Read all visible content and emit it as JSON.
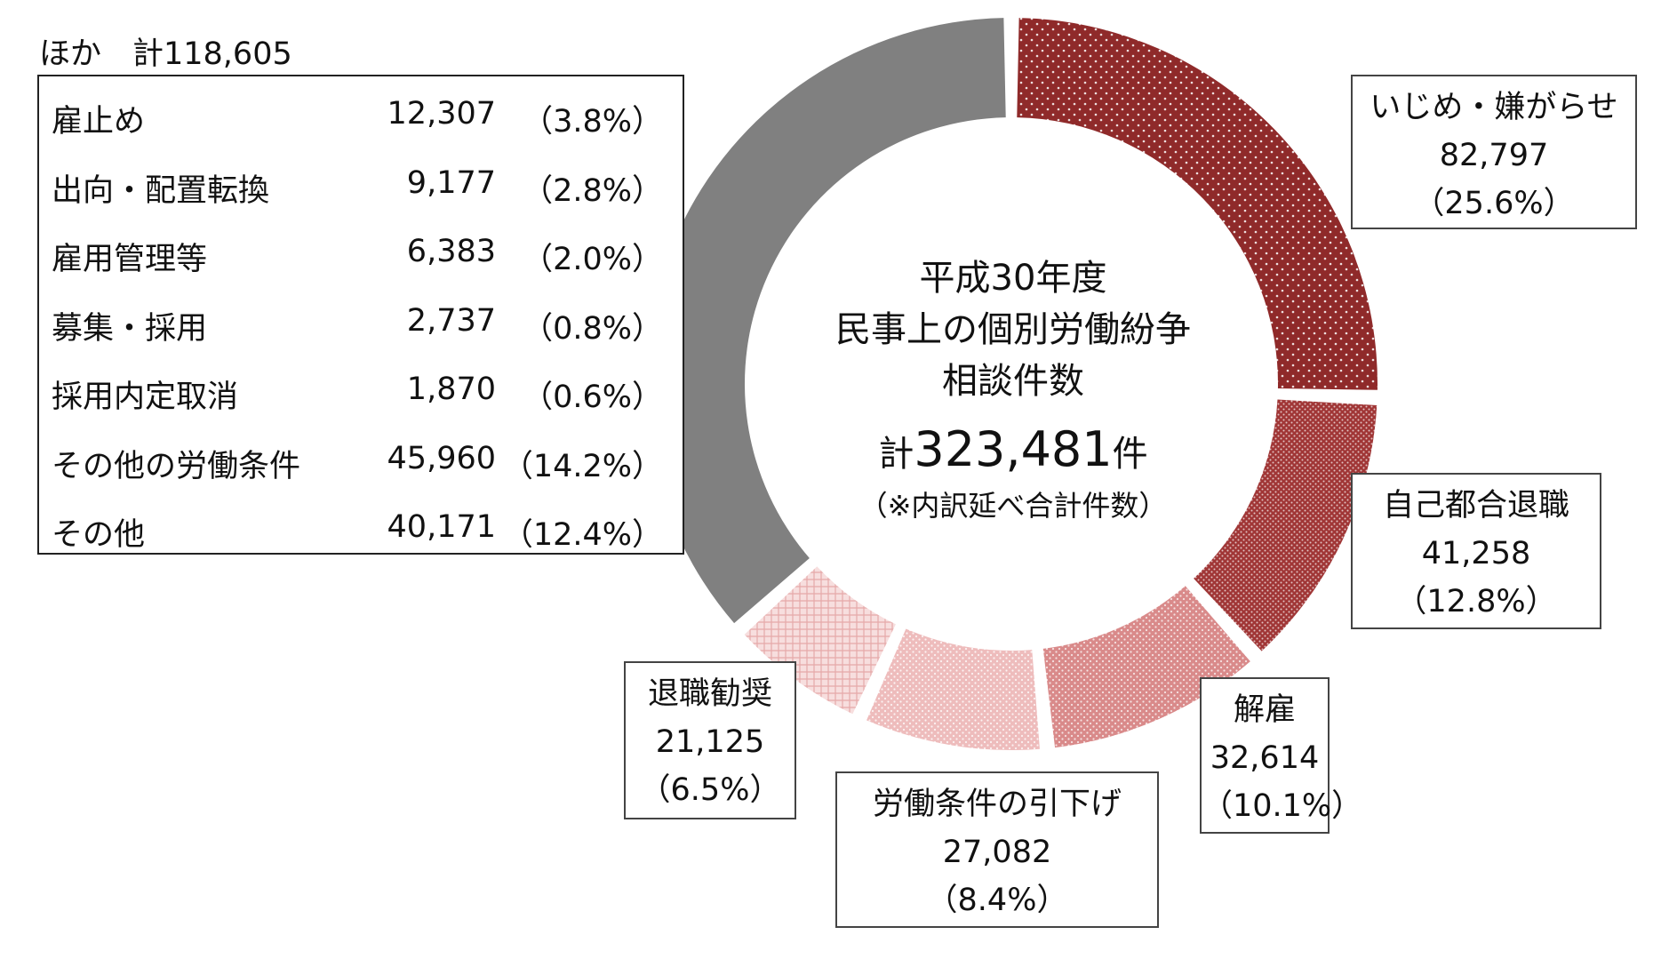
{
  "chart_data": {
    "type": "pie",
    "variant": "donut",
    "center": {
      "title_lines": [
        "平成30年度",
        "民事上の個別労働紛争",
        "相談件数"
      ],
      "total_prefix": "計",
      "total_value": "323,481",
      "total_suffix": "件",
      "note": "（※内訳延べ合計件数）"
    },
    "total": 323481,
    "slices": [
      {
        "label": "いじめ・嫌がらせ",
        "value": 82797,
        "value_label": "82,797",
        "percent_label": "（25.6%）",
        "color": "#8f2a2a",
        "pattern": "sparse-dots"
      },
      {
        "label": "自己都合退職",
        "value": 41258,
        "value_label": "41,258",
        "percent_label": "（12.8%）",
        "color": "#a03636",
        "pattern": "dense-dots"
      },
      {
        "label": "解雇",
        "value": 32614,
        "value_label": "32,614",
        "percent_label": "（10.1%）",
        "color": "#d98a8a",
        "pattern": "dots"
      },
      {
        "label": "労働条件の引下げ",
        "value": 27082,
        "value_label": "27,082",
        "percent_label": "（8.4%）",
        "color": "#eebcbc",
        "pattern": "dots"
      },
      {
        "label": "退職勧奨",
        "value": 21125,
        "value_label": "21,125",
        "percent_label": "（6.5%）",
        "color": "#f2cccc",
        "pattern": "grid"
      },
      {
        "label": "ほか",
        "value": 118605,
        "color": "#808080",
        "pattern": "solid"
      }
    ],
    "others_breakdown": {
      "heading": "ほか　計118,605",
      "items": [
        {
          "label": "雇止め",
          "value": 12307,
          "value_label": "12,307",
          "percent_label": "（3.8%）"
        },
        {
          "label": "出向・配置転換",
          "value": 9177,
          "value_label": "9,177",
          "percent_label": "（2.8%）"
        },
        {
          "label": "雇用管理等",
          "value": 6383,
          "value_label": "6,383",
          "percent_label": "（2.0%）"
        },
        {
          "label": "募集・採用",
          "value": 2737,
          "value_label": "2,737",
          "percent_label": "（0.8%）"
        },
        {
          "label": "採用内定取消",
          "value": 1870,
          "value_label": "1,870",
          "percent_label": "（0.6%）"
        },
        {
          "label": "その他の労働条件",
          "value": 45960,
          "value_label": "45,960",
          "percent_label": "（14.2%）"
        },
        {
          "label": "その他",
          "value": 40171,
          "value_label": "40,171",
          "percent_label": "（12.4%）"
        }
      ]
    }
  }
}
